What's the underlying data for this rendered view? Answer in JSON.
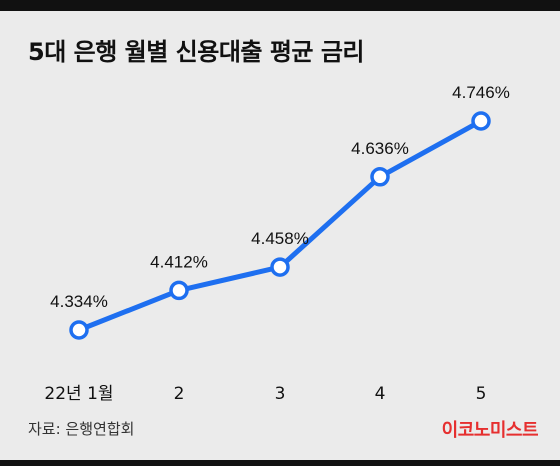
{
  "header": {
    "title": "5대 은행 월별 신용대출 평균 금리"
  },
  "footer": {
    "source": "자료: 은행연합회",
    "brand": "이코노미스트"
  },
  "chart_data": {
    "type": "line",
    "title": "5대 은행 월별 신용대출 평균 금리",
    "categories": [
      "22년 1월",
      "2",
      "3",
      "4",
      "5"
    ],
    "values": [
      4.334,
      4.412,
      4.458,
      4.636,
      4.746
    ],
    "value_labels": [
      "4.334%",
      "4.412%",
      "4.458%",
      "4.636%",
      "4.746%"
    ],
    "xlabel": "",
    "ylabel": "",
    "grid": false,
    "line_color": "#1e6ff0",
    "marker_fill": "#ffffff"
  }
}
